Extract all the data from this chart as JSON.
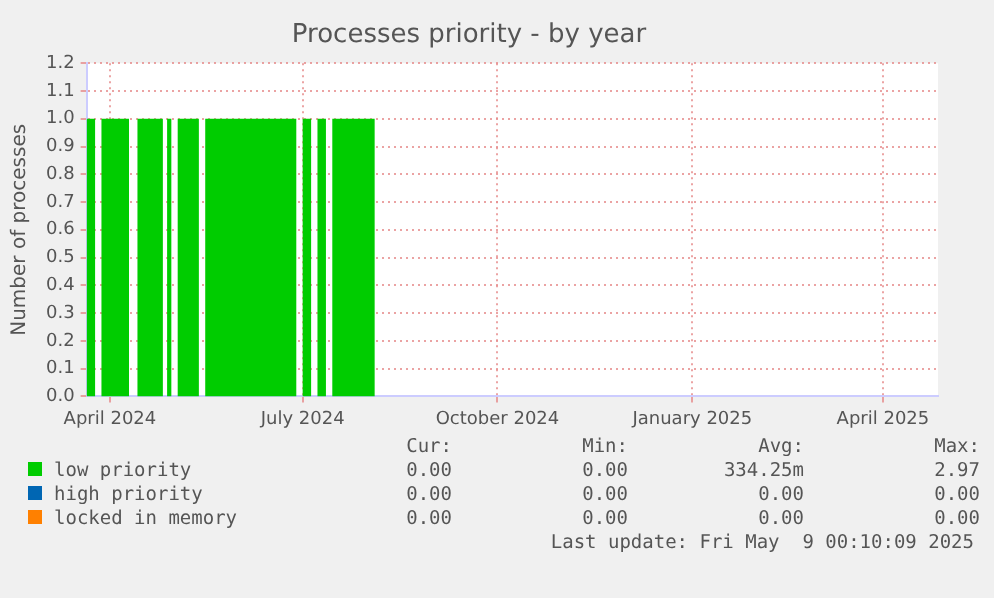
{
  "chart_data": {
    "type": "area",
    "title": "Processes priority - by year",
    "ylabel": "Number of processes",
    "xlim": [
      "2024-03-21",
      "2025-04-27"
    ],
    "xticks": [
      {
        "value": "2024-04-01",
        "label": "April 2024"
      },
      {
        "value": "2024-07-01",
        "label": "July 2024"
      },
      {
        "value": "2024-10-01",
        "label": "October 2024"
      },
      {
        "value": "2025-01-01",
        "label": "January 2025"
      },
      {
        "value": "2025-04-01",
        "label": "April 2025"
      }
    ],
    "ylim": [
      0,
      1.2
    ],
    "yticks": [
      {
        "value": 0,
        "label": "0.0"
      },
      {
        "value": 0.1,
        "label": "0.1"
      },
      {
        "value": 0.2,
        "label": "0.2"
      },
      {
        "value": 0.3,
        "label": "0.3"
      },
      {
        "value": 0.4,
        "label": "0.4"
      },
      {
        "value": 0.5,
        "label": "0.5"
      },
      {
        "value": 0.6,
        "label": "0.6"
      },
      {
        "value": 0.7,
        "label": "0.7"
      },
      {
        "value": 0.8,
        "label": "0.8"
      },
      {
        "value": 0.9,
        "label": "0.9"
      },
      {
        "value": 1,
        "label": "1.0"
      },
      {
        "value": 1.1,
        "label": "1.1"
      },
      {
        "value": 1.2,
        "label": "1.2"
      }
    ],
    "grid": true,
    "legend": "bottom",
    "series": [
      {
        "name": "low priority",
        "color": "#00cc00",
        "x": [
          "2024-03-21",
          "2024-03-25",
          "2024-03-28",
          "2024-04-10",
          "2024-04-14",
          "2024-04-26",
          "2024-04-28",
          "2024-04-30",
          "2024-05-03",
          "2024-05-13",
          "2024-05-16",
          "2024-06-28",
          "2024-07-01",
          "2024-07-05",
          "2024-07-08",
          "2024-07-12",
          "2024-07-15",
          "2024-08-04",
          "2025-04-27"
        ],
        "values": [
          1,
          0,
          1,
          0,
          1,
          0,
          1,
          0,
          1,
          0,
          1,
          0,
          1,
          0,
          1,
          0,
          1,
          0,
          0
        ]
      },
      {
        "name": "high priority",
        "color": "#0066b3"
      },
      {
        "name": "locked in memory",
        "color": "#ff8000"
      }
    ],
    "annotations": [
      "Cur:",
      "Min:",
      "Avg:",
      "Max:",
      "0.00",
      "0.00",
      "334.25m",
      "2.97",
      "0.00",
      "0.00",
      "0.00",
      "0.00",
      "0.00",
      "0.00",
      "0.00",
      "0.00",
      "Last update: Fri May  9 00:10:09 2025"
    ]
  }
}
